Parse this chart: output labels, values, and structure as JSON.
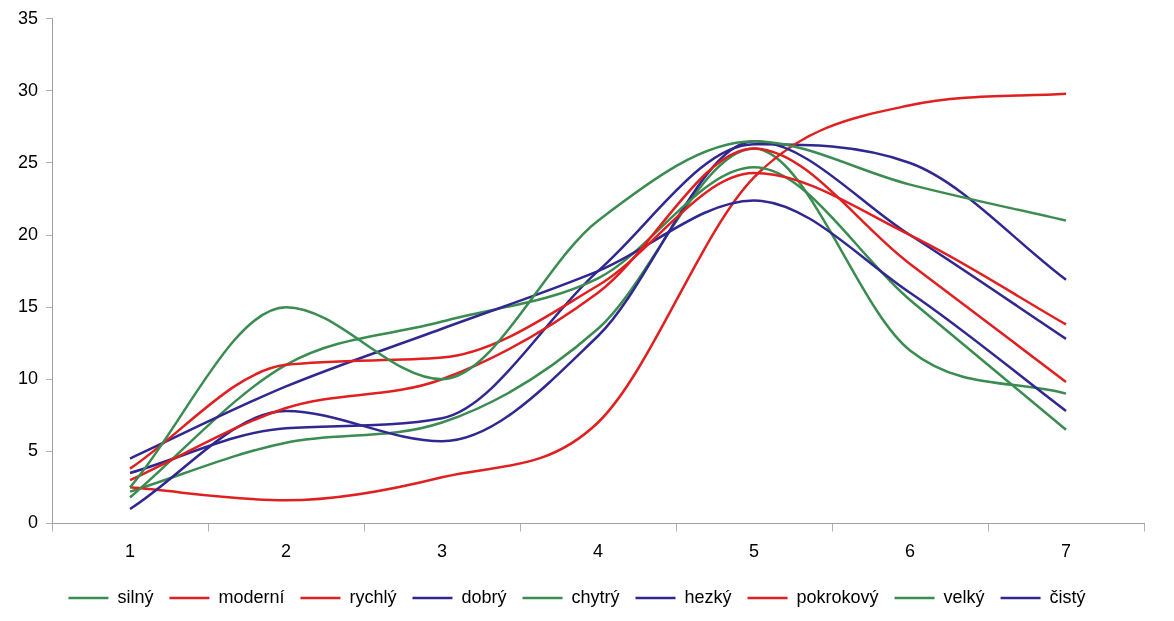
{
  "chart_data": {
    "type": "line",
    "categories": [
      "1",
      "2",
      "3",
      "4",
      "5",
      "6",
      "7"
    ],
    "ylim": [
      0,
      35
    ],
    "yticks": [
      0,
      5,
      10,
      15,
      20,
      25,
      30,
      35
    ],
    "grid": false,
    "legend": "bottom",
    "marker": "none",
    "line_style": "solid",
    "series": [
      {
        "name": "silný",
        "color": "#3b8c50",
        "values": [
          2.5,
          15,
          10,
          21,
          26.5,
          23.5,
          21
        ]
      },
      {
        "name": "moderní",
        "color": "#e02020",
        "values": [
          3.8,
          11,
          11.5,
          16.5,
          24.3,
          20,
          13.8
        ]
      },
      {
        "name": "rychlý",
        "color": "#e02020",
        "values": [
          3,
          8,
          10,
          16,
          26,
          18,
          9.8
        ]
      },
      {
        "name": "dobrý",
        "color": "#302890",
        "values": [
          4.5,
          9.5,
          13.5,
          17.5,
          22.4,
          16,
          7.8
        ]
      },
      {
        "name": "chytrý",
        "color": "#3b8c50",
        "values": [
          1.8,
          11,
          14,
          17,
          24.7,
          15.5,
          6.5
        ]
      },
      {
        "name": "hezký",
        "color": "#302890",
        "values": [
          1,
          7.8,
          5.7,
          13,
          26.5,
          20,
          12.8
        ]
      },
      {
        "name": "pokrokový",
        "color": "#e02020",
        "values": [
          2.5,
          1.6,
          3.2,
          7,
          24,
          29,
          29.8
        ]
      },
      {
        "name": "velký",
        "color": "#3b8c50",
        "values": [
          2.2,
          5.6,
          7,
          13.5,
          26,
          12,
          9
        ]
      },
      {
        "name": "čistý",
        "color": "#302890",
        "values": [
          3.5,
          6.6,
          7.3,
          17.5,
          26.3,
          25,
          16.9
        ]
      }
    ]
  }
}
